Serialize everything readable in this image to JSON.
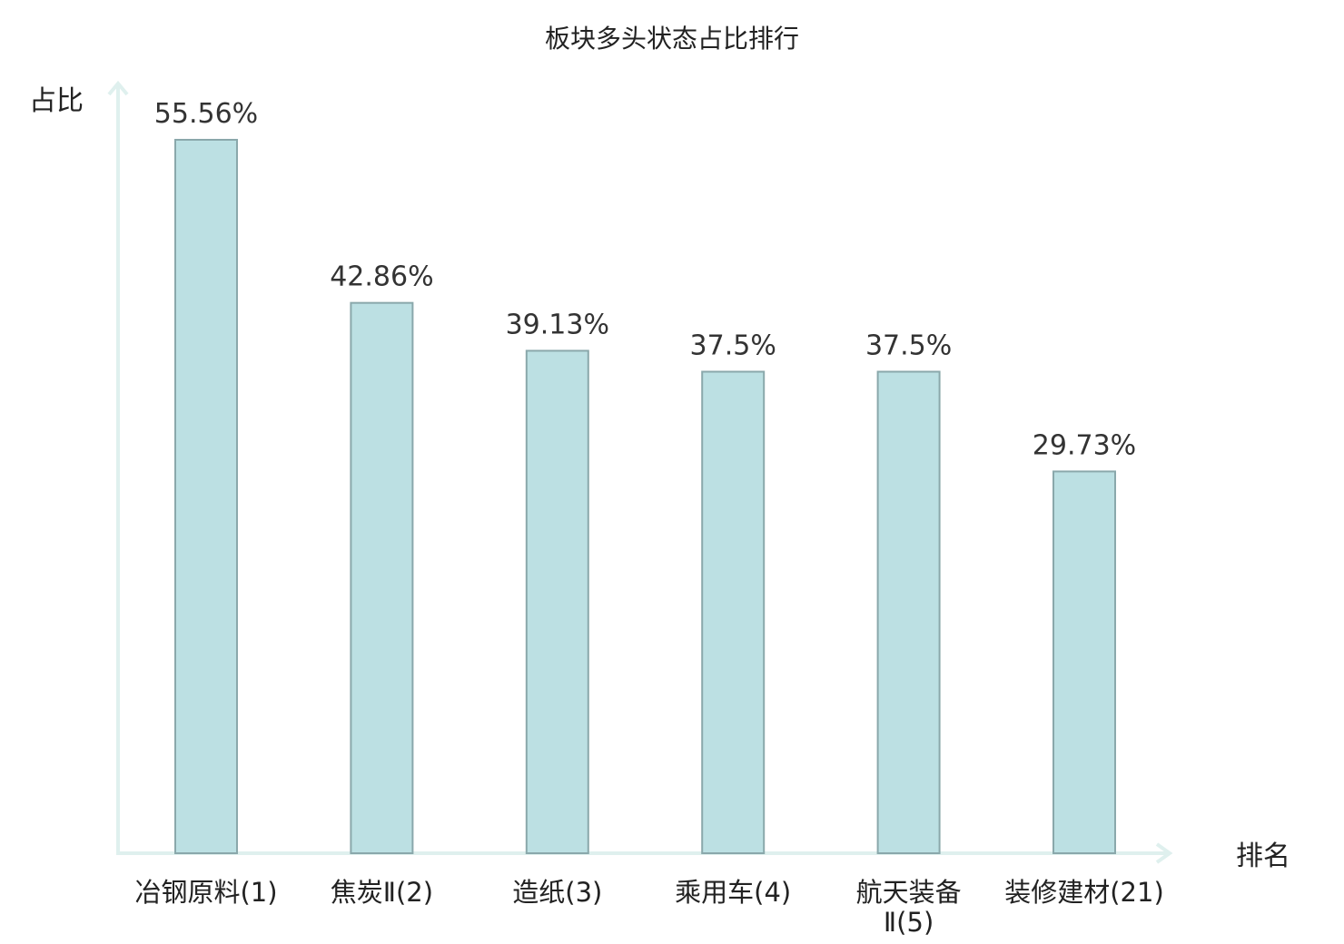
{
  "chart_data": {
    "type": "bar",
    "title": "板块多头状态占比排行",
    "xlabel": "排名",
    "ylabel": "占比",
    "categories": [
      "冶钢原料(1)",
      "焦炭Ⅱ(2)",
      "造纸(3)",
      "乘用车(4)",
      "航天装备Ⅱ(5)",
      "装修建材(21)"
    ],
    "category_lines": [
      [
        "冶钢原料(1)"
      ],
      [
        "焦炭Ⅱ(2)"
      ],
      [
        "造纸(3)"
      ],
      [
        "乘用车(4)"
      ],
      [
        "航天装备",
        "Ⅱ(5)"
      ],
      [
        "装修建材(21)"
      ]
    ],
    "values": [
      55.56,
      42.86,
      39.13,
      37.5,
      37.5,
      29.73
    ],
    "value_labels": [
      "55.56%",
      "42.86%",
      "39.13%",
      "37.5%",
      "37.5%",
      "29.73%"
    ],
    "highlight_index": 5,
    "ylim": [
      0,
      60
    ],
    "grid": false,
    "colors": {
      "bar_fill": "#bce0e3",
      "bar_stroke": "#8aa8ab",
      "axis": "#dff0ee",
      "highlight_label": "#e0161a",
      "text": "#222222"
    }
  }
}
